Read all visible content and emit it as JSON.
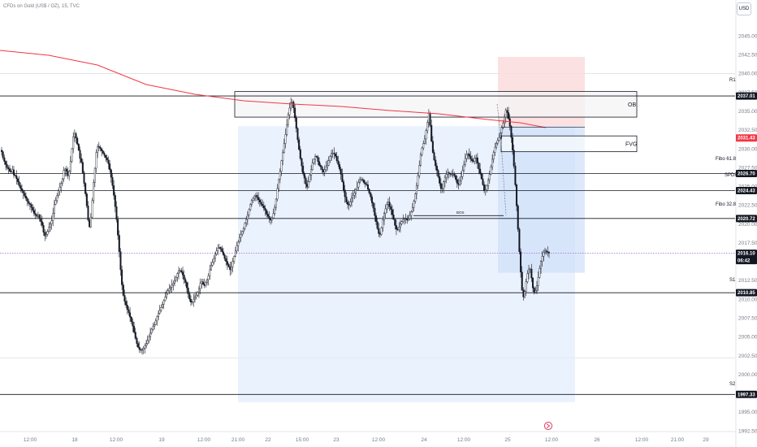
{
  "header": {
    "symbol_title": "CFDs on Gold (US$ / OZ), 15, TVC",
    "currency_button": "USD"
  },
  "chart_data": {
    "type": "candlestick",
    "ylim": [
      1992.5,
      2047.5
    ],
    "y_ticks": [
      "2045.00",
      "2042.50",
      "2040.00",
      "2037.50",
      "2035.00",
      "2032.50",
      "2030.00",
      "2027.50",
      "2025.00",
      "2022.50",
      "2020.00",
      "2017.50",
      "2015.00",
      "2012.50",
      "2010.00",
      "2007.50",
      "2005.00",
      "2002.50",
      "2000.00",
      "1997.50",
      "1995.00",
      "1992.50"
    ],
    "x_ticks": [
      "12:00",
      "18",
      "12:00",
      "19",
      "12:00",
      "21:00",
      "22",
      "15:00",
      "23",
      "12:00",
      "24",
      "12:00",
      "25",
      "12:00",
      "26",
      "12:00",
      "21:00",
      "29"
    ],
    "levels": [
      {
        "name": "R1",
        "value": 2037.01,
        "tag": "2037.01"
      },
      {
        "name": "Fibo 61.8",
        "value": 2026.7,
        "tag": "2026.70"
      },
      {
        "name": "SPDR",
        "value": 2024.43,
        "tag": "2024.43"
      },
      {
        "name": "Fibo 32.8",
        "value": 2020.72,
        "tag": "2020.72"
      },
      {
        "name": "S1",
        "value": 2010.85,
        "tag": "2010.85"
      },
      {
        "name": "S2",
        "value": 1997.33,
        "tag": "1997.33"
      }
    ],
    "moving_average": {
      "end_value": 2031.43,
      "tag": "2031.43",
      "color": "#f23645"
    },
    "last_price": {
      "value": 2016.1,
      "tag": "2016.10",
      "countdown": "06:42",
      "color": "#131722"
    },
    "zones": [
      {
        "label": "OB",
        "top": 2037.6,
        "bottom": 2034.2
      },
      {
        "label": "FVG",
        "top": 2031.7,
        "bottom": 2029.6
      },
      {
        "label": "BOS",
        "value": 2021.1
      }
    ],
    "trade_box": {
      "stop_top": 2042.2,
      "entry": 2033.0,
      "target": 2013.5
    },
    "series_close": [
      2029.6,
      2028.8,
      2028.3,
      2027.9,
      2027.5,
      2027.3,
      2027.0,
      2026.9,
      2027.2,
      2026.5,
      2026.4,
      2026.0,
      2025.6,
      2025.1,
      2024.7,
      2024.4,
      2024.1,
      2023.7,
      2023.4,
      2023.0,
      2022.7,
      2022.6,
      2022.2,
      2021.8,
      2021.4,
      2021.2,
      2021.0,
      2021.2,
      2020.7,
      2020.3,
      2019.8,
      2018.9,
      2018.4,
      2018.6,
      2019.0,
      2019.6,
      2020.0,
      2020.4,
      2021.4,
      2022.6,
      2023.1,
      2023.8,
      2024.4,
      2024.9,
      2025.4,
      2026.0,
      2027.1,
      2027.3,
      2027.0,
      2026.4,
      2027.0,
      2028.3,
      2030.0,
      2031.6,
      2032.0,
      2031.4,
      2030.6,
      2029.8,
      2028.7,
      2028.2,
      2026.8,
      2025.4,
      2024.0,
      2022.4,
      2020.5,
      2019.6,
      2020.9,
      2023.1,
      2025.5,
      2027.4,
      2029.5,
      2030.3,
      2030.2,
      2030.0,
      2029.7,
      2029.4,
      2029.1,
      2028.8,
      2028.5,
      2028.0,
      2027.2,
      2026.2,
      2025.1,
      2023.8,
      2022.3,
      2020.6,
      2018.5,
      2016.3,
      2013.9,
      2011.9,
      2010.5,
      2009.7,
      2009.2,
      2008.6,
      2008.2,
      2007.6,
      2007.0,
      2006.4,
      2005.6,
      2004.8,
      2004.1,
      2003.6,
      2003.3,
      2003.2,
      2003.3,
      2003.5,
      2003.8,
      2004.1,
      2004.5,
      2005.0,
      2005.5,
      2006.0,
      2006.4,
      2006.6,
      2007.1,
      2007.7,
      2008.1,
      2008.5,
      2008.9,
      2009.3,
      2009.8,
      2010.3,
      2010.8,
      2011.1,
      2011.4,
      2011.6,
      2011.9,
      2012.1,
      2012.5,
      2012.9,
      2013.4,
      2013.8,
      2013.8,
      2013.6,
      2013.2,
      2012.6,
      2012.2,
      2011.5,
      2010.7,
      2010.0,
      2009.6,
      2009.6,
      2010.0,
      2010.3,
      2010.5,
      2010.9,
      2011.4,
      2012.1,
      2012.3,
      2012.0,
      2011.8,
      2012.2,
      2012.6,
      2013.1,
      2013.9,
      2014.5,
      2014.9,
      2015.4,
      2016.0,
      2016.4,
      2016.8,
      2016.9,
      2016.7,
      2016.3,
      2015.9,
      2015.4,
      2015.0,
      2014.6,
      2014.3,
      2013.9,
      2014.3,
      2015.0,
      2015.7,
      2016.4,
      2017.1,
      2017.6,
      2018.2,
      2018.6,
      2019.0,
      2019.4,
      2020.1,
      2020.6,
      2021.2,
      2021.9,
      2022.6,
      2023.1,
      2023.4,
      2023.7,
      2023.8,
      2023.5,
      2023.2,
      2022.9,
      2022.6,
      2022.4,
      2022.1,
      2021.8,
      2021.3,
      2021.0,
      2020.7,
      2020.5,
      2020.8,
      2021.4,
      2022.2,
      2023.3,
      2024.7,
      2025.9,
      2027.0,
      2028.4,
      2029.5,
      2030.7,
      2031.9,
      2033.2,
      2034.5,
      2035.4,
      2036.1,
      2036.2,
      2035.4,
      2034.1,
      2032.7,
      2031.2,
      2029.9,
      2028.7,
      2027.7,
      2026.7,
      2026.1,
      2025.3,
      2024.9,
      2025.6,
      2026.5,
      2027.2,
      2028.1,
      2028.6,
      2029.0,
      2028.9,
      2028.3,
      2027.8,
      2027.6,
      2027.2,
      2026.9,
      2027.2,
      2027.6,
      2027.8,
      2028.4,
      2029.0,
      2029.4,
      2029.4,
      2029.3,
      2029.0,
      2028.4,
      2027.9,
      2027.3,
      2026.6,
      2025.6,
      2024.5,
      2023.6,
      2022.9,
      2022.6,
      2022.5,
      2022.9,
      2023.5,
      2023.8,
      2024.1,
      2024.6,
      2024.9,
      2025.5,
      2025.9,
      2025.9,
      2025.8,
      2025.5,
      2025.3,
      2025.2,
      2024.6,
      2024.1,
      2023.6,
      2022.8,
      2022.1,
      2021.1,
      2020.3,
      2019.4,
      2018.7,
      2018.6,
      2019.5,
      2020.5,
      2021.4,
      2022.0,
      2022.6,
      2022.9,
      2022.3,
      2021.9,
      2021.2,
      2020.6,
      2019.8,
      2019.3,
      2019.2,
      2019.6,
      2020.0,
      2020.3,
      2020.6,
      2020.7,
      2020.7,
      2020.5,
      2020.7,
      2021.1,
      2021.6,
      2022.2,
      2023.0,
      2024.0,
      2025.1,
      2026.4,
      2027.8,
      2029.2,
      2030.1,
      2030.7,
      2031.3,
      2032.4,
      2033.5,
      2034.7,
      2033.1,
      2031.0,
      2029.5,
      2028.5,
      2027.7,
      2027.1,
      2026.3,
      2025.4,
      2024.7,
      2024.7,
      2025.6,
      2026.2,
      2026.6,
      2026.8,
      2026.7,
      2026.6,
      2026.6,
      2026.6,
      2026.4,
      2025.9,
      2025.4,
      2025.2,
      2025.7,
      2026.3,
      2027.1,
      2027.9,
      2028.7,
      2029.2,
      2029.3,
      2029.0,
      2028.6,
      2028.4,
      2028.3,
      2028.7,
      2028.8,
      2028.1,
      2027.3,
      2026.7,
      2026.0,
      2025.2,
      2024.4,
      2024.5,
      2025.1,
      2025.8,
      2026.6,
      2027.6,
      2028.6,
      2029.5,
      2030.2,
      2030.7,
      2031.1,
      2031.5,
      2032.1,
      2032.8,
      2033.4,
      2034.2,
      2035.1,
      2034.8,
      2034.0,
      2033.0,
      2031.5,
      2029.8,
      2027.7,
      2025.2,
      2022.4,
      2019.3,
      2016.3,
      2013.6,
      2011.2,
      2010.3,
      2011.0,
      2012.3,
      2013.4,
      2014.0,
      2014.0,
      2012.8,
      2011.5,
      2010.9,
      2011.1,
      2011.8,
      2012.9,
      2014.1,
      2015.0,
      2015.7,
      2016.2,
      2016.4,
      2016.3,
      2016.2,
      2016.1
    ]
  }
}
